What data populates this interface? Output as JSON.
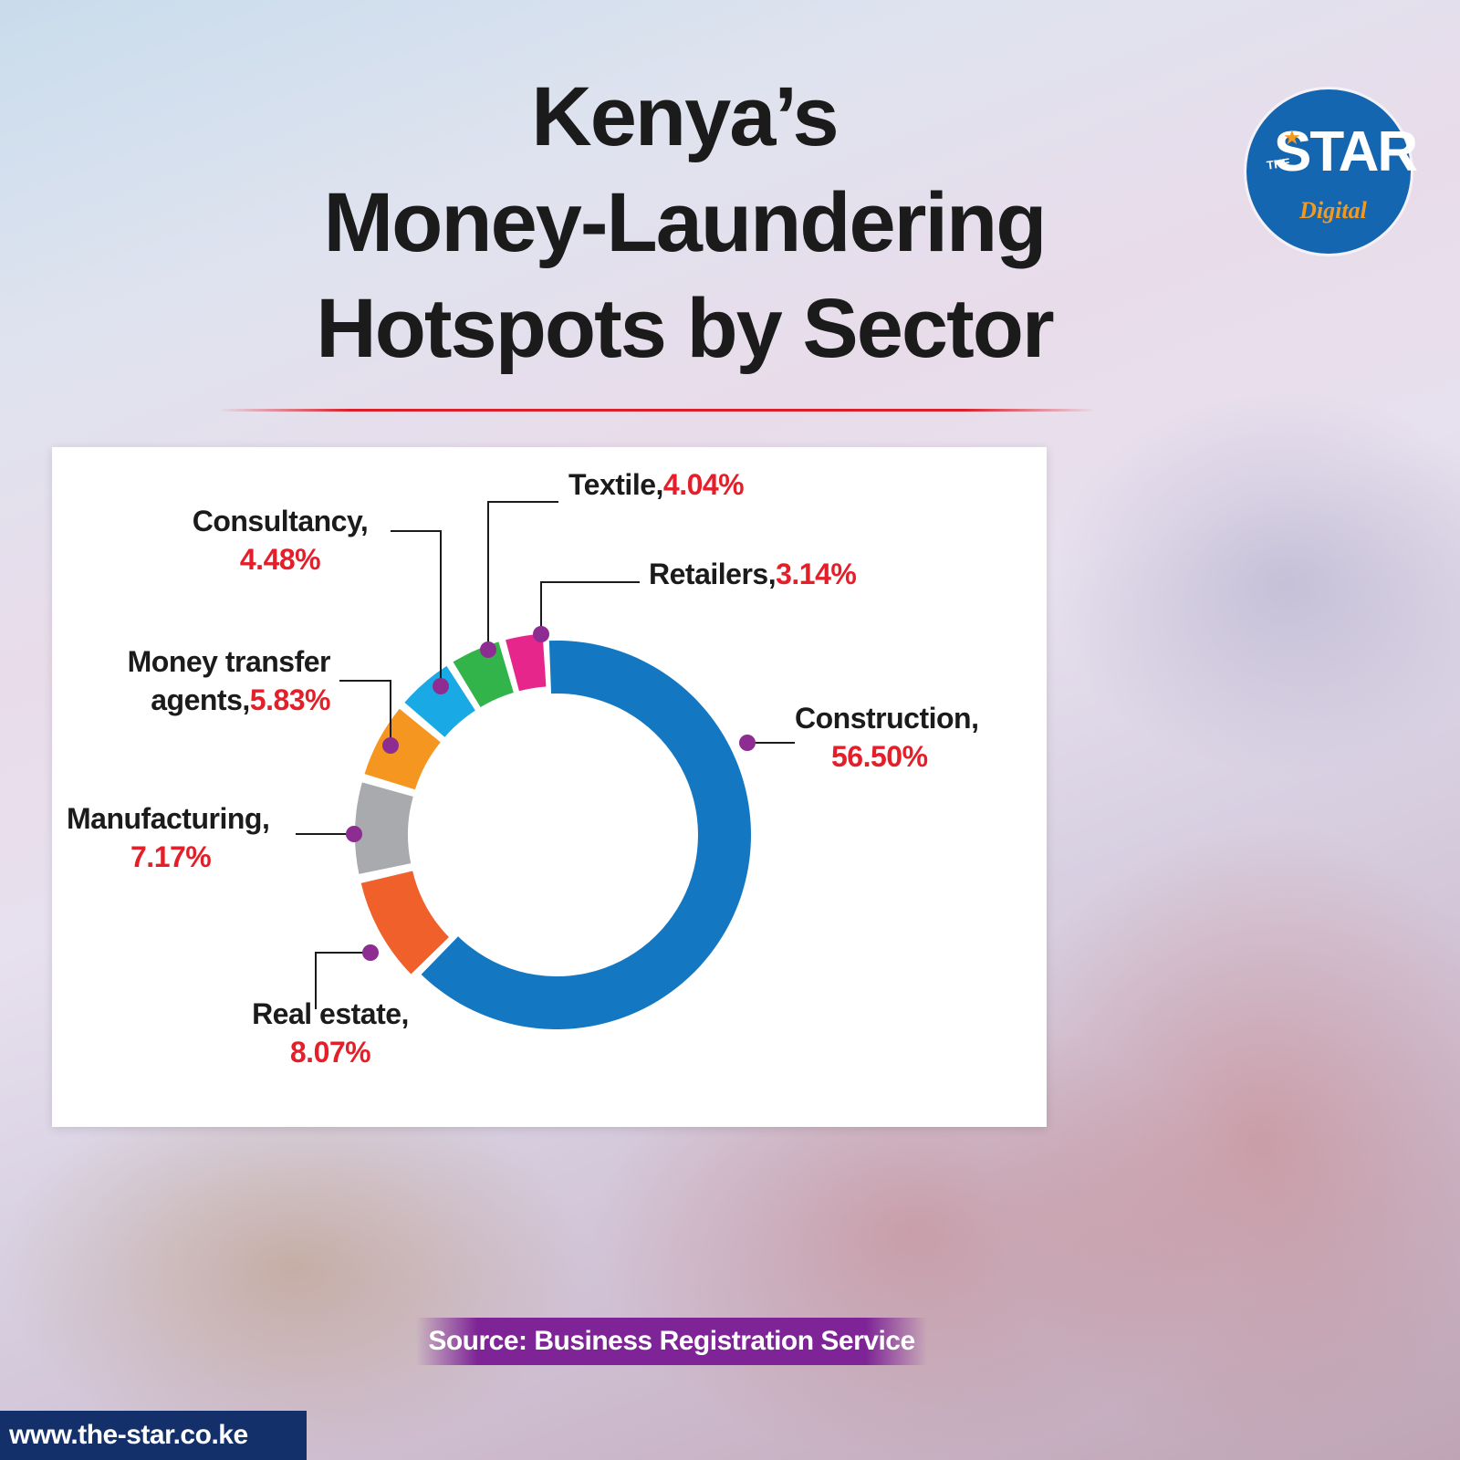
{
  "title": "Kenya’s\nMoney-Laundering\nHotspots by Sector",
  "logo": {
    "prefix": "THE",
    "name": "STAR",
    "sub": "Digital"
  },
  "source": "Source: Business Registration Service",
  "website": "www.the-star.co.ke",
  "colors": {
    "title_rule": "#d81f2a",
    "percent_text": "#e41f2a",
    "marker": "#8e2d91",
    "source_bar": "#7e2496",
    "website_bar": "#14306b",
    "logo_circle": "#1466b0"
  },
  "chart_data": {
    "type": "pie",
    "donut": true,
    "title": "",
    "slices": [
      {
        "name": "Construction,",
        "value": 56.5,
        "label": "56.50%",
        "color": "#1477c2"
      },
      {
        "name": "Real estate,",
        "value": 8.07,
        "label": "8.07%",
        "color": "#f0602a"
      },
      {
        "name": "Manufacturing,",
        "value": 7.17,
        "label": "7.17%",
        "color": "#a9aaad"
      },
      {
        "name": "Money transfer agents,",
        "value": 5.83,
        "label": "5.83%",
        "color": "#f4961f"
      },
      {
        "name": "Consultancy,",
        "value": 4.48,
        "label": "4.48%",
        "color": "#19a9e4"
      },
      {
        "name": "Textile,",
        "value": 4.04,
        "label": "4.04%",
        "color": "#33b44a"
      },
      {
        "name": "Retailers,",
        "value": 3.14,
        "label": "3.14%",
        "color": "#e7268c"
      }
    ]
  },
  "labels": {
    "construction": {
      "name": "Construction,",
      "pct": "56.50%"
    },
    "real_estate": {
      "name": "Real estate,",
      "pct": "8.07%"
    },
    "manufacturing": {
      "name": "Manufacturing,",
      "pct": "7.17%"
    },
    "money_transfer": {
      "name_line1": "Money transfer",
      "name_line2": "agents,",
      "pct": "5.83%"
    },
    "consultancy": {
      "name": "Consultancy,",
      "pct": "4.48%"
    },
    "textile": {
      "name": "Textile,",
      "pct": "4.04%"
    },
    "retailers": {
      "name": "Retailers,",
      "pct": "3.14%"
    }
  }
}
